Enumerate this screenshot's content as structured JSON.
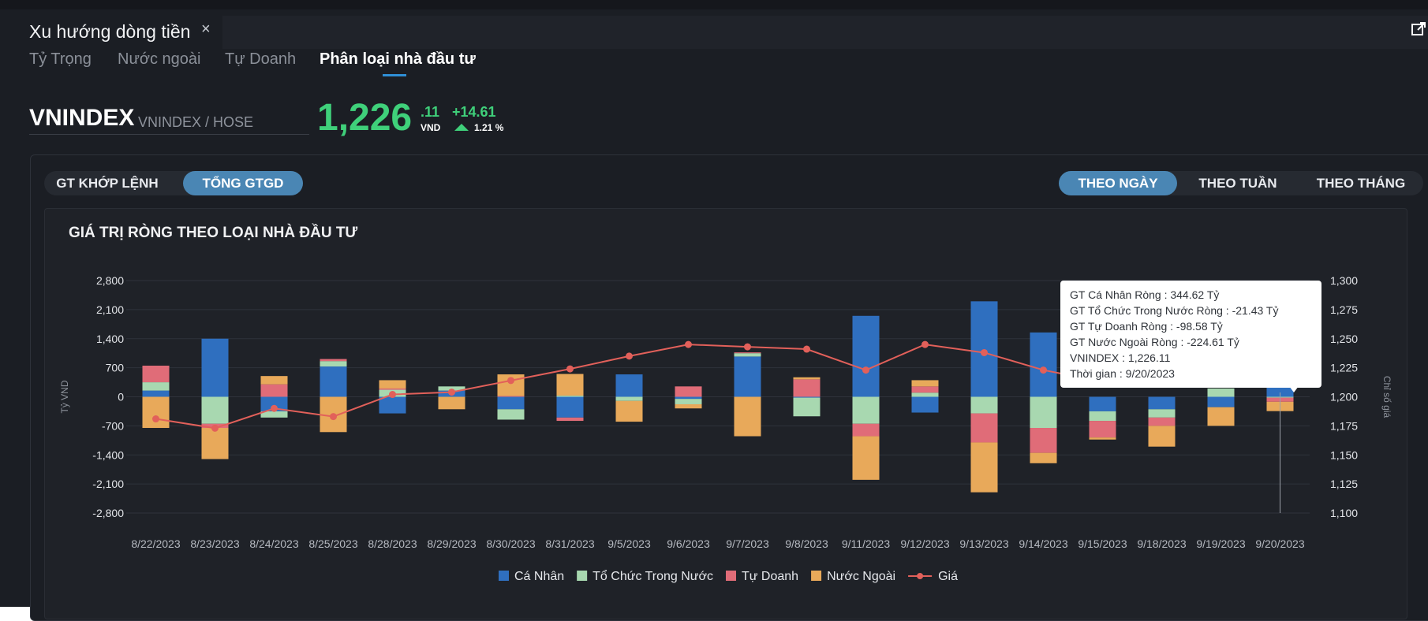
{
  "panel": {
    "title": "Xu hướng dòng tiền",
    "close_symbol": "×"
  },
  "subtabs": [
    {
      "label": "Tỷ Trọng",
      "active": false
    },
    {
      "label": "Nước ngoài",
      "active": false
    },
    {
      "label": "Tự Doanh",
      "active": false
    },
    {
      "label": "Phân loại nhà đầu tư",
      "active": true
    }
  ],
  "index": {
    "name": "VNINDEX",
    "exchange": "VNINDEX / HOSE",
    "price_int": "1,226",
    "price_dec": ".11",
    "unit": "VND",
    "change": "+14.61",
    "change_pct": "1.21 %",
    "color_up": "#3fd07a"
  },
  "value_toggle": [
    {
      "label": "GT KHỚP LỆNH",
      "active": false
    },
    {
      "label": "TỔNG GTGD",
      "active": true
    }
  ],
  "period_toggle": [
    {
      "label": "THEO NGÀY",
      "active": true
    },
    {
      "label": "THEO TUẦN",
      "active": false
    },
    {
      "label": "THEO THÁNG",
      "active": false
    }
  ],
  "tooltip": {
    "lines": [
      "GT Cá Nhân Ròng : 344.62 Tỷ",
      "GT Tổ Chức Trong Nước Ròng : -21.43 Tỷ",
      "GT Tự Doanh Ròng : -98.58 Tỷ",
      "GT Nước Ngoài Ròng : -224.61 Tỷ",
      "VNINDEX : 1,226.11",
      "Thời gian : 9/20/2023"
    ]
  },
  "chart_data": {
    "type": "bar",
    "stacked": true,
    "title": "GIÁ TRỊ RÒNG THEO LOẠI NHÀ ĐẦU TƯ",
    "ylabel": "Tỷ VND",
    "y2label": "Chỉ số giá",
    "ylim": [
      -2800,
      2800
    ],
    "yticks": [
      2800,
      2100,
      1400,
      700,
      0,
      -700,
      -1400,
      -2100,
      -2800
    ],
    "ytick_labels": [
      "2,800",
      "2,100",
      "1,400",
      "700",
      "0",
      "-700",
      "-1,400",
      "-2,100",
      "-2,800"
    ],
    "y2lim": [
      1100,
      1300
    ],
    "y2ticks": [
      1300,
      1275,
      1250,
      1225,
      1200,
      1175,
      1150,
      1125,
      1100
    ],
    "y2tick_labels": [
      "1,300",
      "1,275",
      "1,250",
      "1,225",
      "1,200",
      "1,175",
      "1,150",
      "1,125",
      "1,100"
    ],
    "grid": true,
    "legend_position": "bottom",
    "categories": [
      "8/22/2023",
      "8/23/2023",
      "8/24/2023",
      "8/25/2023",
      "8/28/2023",
      "8/29/2023",
      "8/30/2023",
      "8/31/2023",
      "9/5/2023",
      "9/6/2023",
      "9/7/2023",
      "9/8/2023",
      "9/11/2023",
      "9/12/2023",
      "9/13/2023",
      "9/14/2023",
      "9/15/2023",
      "9/18/2023",
      "9/19/2023",
      "9/20/2023"
    ],
    "series": [
      {
        "name": "Cá Nhân",
        "color": "#2f6fbf",
        "values": [
          150,
          1400,
          -350,
          730,
          -400,
          150,
          -300,
          -500,
          540,
          -50,
          970,
          -20,
          1950,
          -380,
          2300,
          1550,
          -350,
          -300,
          -250,
          345
        ]
      },
      {
        "name": "Tổ Chức Trong Nước",
        "color": "#a8d8b0",
        "values": [
          200,
          -650,
          -150,
          130,
          170,
          100,
          -250,
          30,
          -100,
          -130,
          80,
          -450,
          -650,
          100,
          -400,
          -750,
          -230,
          -200,
          200,
          -21
        ]
      },
      {
        "name": "Tự Doanh",
        "color": "#e06c78",
        "values": [
          400,
          -100,
          300,
          50,
          30,
          0,
          20,
          -80,
          0,
          250,
          20,
          420,
          -300,
          150,
          -700,
          -600,
          -400,
          -200,
          0,
          -99
        ]
      },
      {
        "name": "Nước Ngoài",
        "color": "#e8a95a",
        "values": [
          -750,
          -750,
          200,
          -850,
          200,
          -300,
          520,
          520,
          -500,
          -100,
          -950,
          50,
          -1050,
          150,
          -1200,
          -250,
          -50,
          -500,
          -450,
          -225
        ]
      }
    ],
    "line_series": {
      "name": "Giá",
      "color": "#e2605a",
      "axis": "right",
      "values": [
        1181,
        1173,
        1190,
        1183,
        1202,
        1204,
        1214,
        1224,
        1235,
        1245,
        1243,
        1241,
        1223,
        1245,
        1238,
        1223,
        1213,
        1213,
        1213,
        1226
      ]
    },
    "hover_category": "9/20/2023"
  }
}
